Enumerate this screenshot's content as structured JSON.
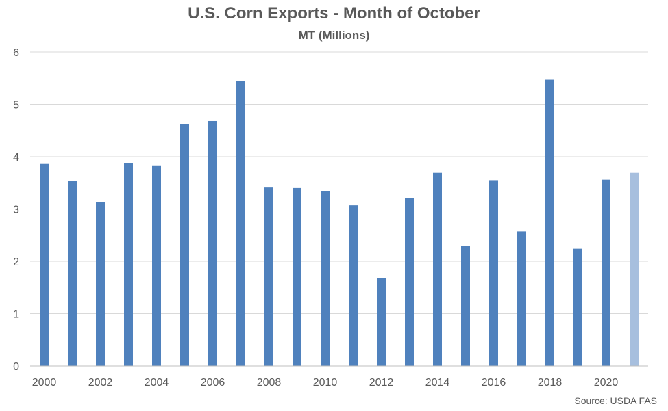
{
  "chart_data": {
    "type": "bar",
    "title": "U.S. Corn Exports - Month of October",
    "subtitle": "MT (Millions)",
    "categories": [
      "2000",
      "2001",
      "2002",
      "2003",
      "2004",
      "2005",
      "2006",
      "2007",
      "2008",
      "2009",
      "2010",
      "2011",
      "2012",
      "2013",
      "2014",
      "2015",
      "2016",
      "2017",
      "2018",
      "2019",
      "2020",
      "2021"
    ],
    "x_tick_labels": [
      "2000",
      "",
      "2002",
      "",
      "2004",
      "",
      "2006",
      "",
      "2008",
      "",
      "2010",
      "",
      "2012",
      "",
      "2014",
      "",
      "2016",
      "",
      "2018",
      "",
      "2020",
      ""
    ],
    "values": [
      3.86,
      3.53,
      3.13,
      3.88,
      3.82,
      4.62,
      4.68,
      5.45,
      3.41,
      3.4,
      3.34,
      3.07,
      1.68,
      3.21,
      3.69,
      2.29,
      3.55,
      2.57,
      5.47,
      2.24,
      3.56,
      3.69
    ],
    "highlighted_index": 21,
    "ylim": [
      0,
      6
    ],
    "y_ticks": [
      "0",
      "1",
      "2",
      "3",
      "4",
      "5",
      "6"
    ],
    "grid": true,
    "legend": "none",
    "colors": {
      "bar": "#4f81bd",
      "bar_highlight": "#a7bfde",
      "grid": "#d9d9d9",
      "axis": "#bfbfbf",
      "text": "#595959"
    },
    "source": "Source: USDA FAS"
  }
}
